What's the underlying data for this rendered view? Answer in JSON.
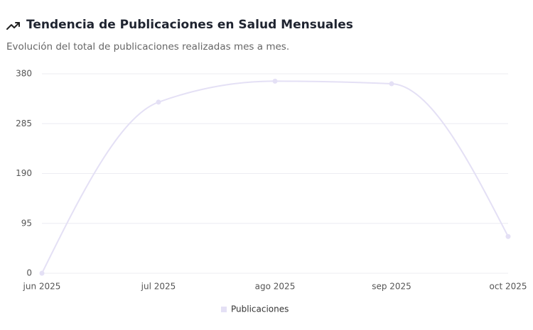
{
  "chart_data": {
    "type": "line",
    "title": "Tendencia de Publicaciones en Salud Mensuales",
    "subtitle": "Evolución del total de publicaciones realizadas mes a mes.",
    "categories": [
      "jun 2025",
      "jul 2025",
      "ago 2025",
      "sep 2025",
      "oct 2025"
    ],
    "series": [
      {
        "name": "Publicaciones",
        "color": "#e4e0f5",
        "values": [
          0,
          326,
          366,
          361,
          70
        ]
      }
    ],
    "ylim": [
      0,
      380
    ],
    "yticks": [
      0,
      95,
      190,
      285,
      380
    ],
    "grid": true,
    "legend": "bottom"
  }
}
